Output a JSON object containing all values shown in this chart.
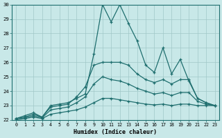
{
  "xlabel": "Humidex (Indice chaleur)",
  "xlim": [
    -0.5,
    23.5
  ],
  "ylim": [
    22,
    30
  ],
  "xticks": [
    0,
    1,
    2,
    3,
    4,
    5,
    6,
    7,
    8,
    9,
    10,
    11,
    12,
    13,
    14,
    15,
    16,
    17,
    18,
    19,
    20,
    21,
    22,
    23
  ],
  "yticks": [
    22,
    23,
    24,
    25,
    26,
    27,
    28,
    29,
    30
  ],
  "bg_color": "#c8e8e8",
  "line_color": "#1e6e6e",
  "grid_color": "#a0c8c8",
  "line1_y": [
    22.1,
    22.3,
    22.5,
    22.2,
    23.0,
    23.1,
    23.2,
    23.5,
    23.8,
    26.6,
    30.0,
    28.8,
    30.0,
    28.7,
    27.5,
    25.8,
    25.3,
    27.0,
    25.2,
    26.2,
    24.7,
    23.5,
    23.2,
    23.0
  ],
  "line2_y": [
    22.1,
    22.2,
    22.4,
    22.2,
    22.9,
    23.0,
    23.1,
    23.6,
    24.3,
    25.8,
    26.0,
    26.0,
    26.0,
    25.8,
    25.2,
    24.8,
    24.6,
    24.8,
    24.5,
    24.8,
    24.8,
    23.5,
    23.2,
    23.0
  ],
  "line3_y": [
    22.1,
    22.15,
    22.3,
    22.15,
    22.7,
    22.8,
    22.9,
    23.2,
    23.6,
    24.5,
    25.0,
    24.8,
    24.7,
    24.5,
    24.2,
    24.0,
    23.8,
    23.9,
    23.7,
    23.9,
    23.9,
    23.3,
    23.1,
    23.0
  ],
  "line4_y": [
    22.0,
    22.1,
    22.2,
    22.1,
    22.4,
    22.5,
    22.6,
    22.7,
    22.9,
    23.2,
    23.5,
    23.5,
    23.4,
    23.3,
    23.2,
    23.1,
    23.05,
    23.1,
    23.0,
    23.1,
    23.1,
    23.0,
    23.0,
    23.0
  ]
}
